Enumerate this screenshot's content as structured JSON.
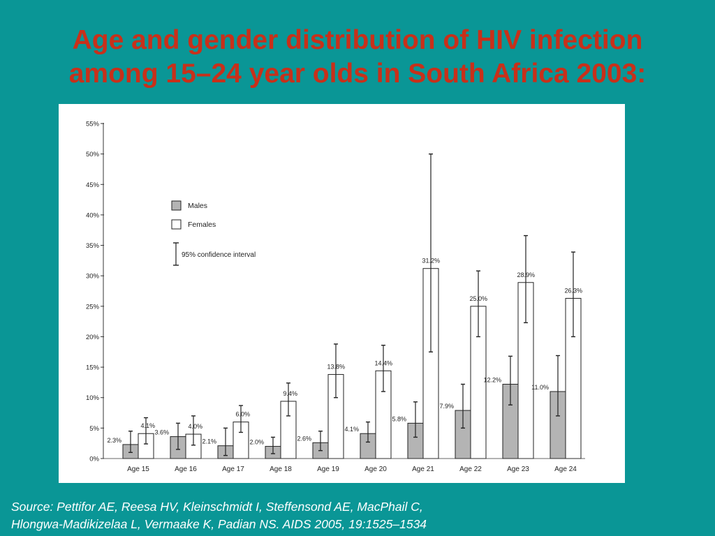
{
  "slide": {
    "title_line1": "Age and gender distribution of HIV infection",
    "title_line2": "among 15–24 year olds in South Africa 2003:",
    "source_line1": "Source: Pettifor AE,  Reesa HV, Kleinschmidt I, Steffensond AE, MacPhail C,",
    "source_line2": "Hlongwa-Madikizelaa L, Vermaake K, Padian NS. AIDS 2005, 19:1525–1534"
  },
  "colors": {
    "background": "#0a9696",
    "title": "#c8301a",
    "males_fill": "#b4b4b4",
    "females_fill": "#ffffff"
  },
  "chart_data": {
    "type": "bar",
    "categories": [
      "Age 15",
      "Age 16",
      "Age 17",
      "Age 18",
      "Age 19",
      "Age 20",
      "Age 21",
      "Age 22",
      "Age 23",
      "Age 24"
    ],
    "series": [
      {
        "name": "Males",
        "values": [
          2.3,
          3.6,
          2.1,
          2.0,
          2.6,
          4.1,
          5.8,
          7.9,
          12.2,
          11.0
        ],
        "labels": [
          "2.3%",
          "3.6%",
          "2.1%",
          "2.0%",
          "2.6%",
          "4.1%",
          "5.8%",
          "7.9%",
          "12.2%",
          "11.0%"
        ],
        "ci_low": [
          1.0,
          1.5,
          0.5,
          0.8,
          1.3,
          2.7,
          3.5,
          5.0,
          8.8,
          7.0
        ],
        "ci_high": [
          4.5,
          5.8,
          5.0,
          3.5,
          4.5,
          6.0,
          9.3,
          12.2,
          16.8,
          16.9
        ]
      },
      {
        "name": "Females",
        "values": [
          4.1,
          4.0,
          6.0,
          9.4,
          13.8,
          14.4,
          31.2,
          25.0,
          28.9,
          26.3
        ],
        "labels": [
          "4.1%",
          "4.0%",
          "6.0%",
          "9.4%",
          "13.8%",
          "14.4%",
          "31.2%",
          "25.0%",
          "28.9%",
          "26.3%"
        ],
        "ci_low": [
          2.4,
          2.2,
          4.3,
          7.0,
          10.0,
          11.0,
          17.5,
          20.0,
          22.3,
          20.0
        ],
        "ci_high": [
          6.7,
          7.0,
          8.7,
          12.4,
          18.8,
          18.6,
          50.0,
          30.8,
          36.6,
          33.9
        ]
      }
    ],
    "ylim": [
      0,
      55
    ],
    "yticks": [
      0,
      5,
      10,
      15,
      20,
      25,
      30,
      35,
      40,
      45,
      50,
      55
    ],
    "ytick_labels": [
      "0%",
      "5%",
      "10%",
      "15%",
      "20%",
      "25%",
      "30%",
      "35%",
      "40%",
      "45%",
      "50%",
      "55%"
    ],
    "legend": {
      "placement": "top-left",
      "entries": [
        "Males",
        "Females"
      ],
      "ci_label": "95% confidence interval"
    },
    "grid": false
  }
}
